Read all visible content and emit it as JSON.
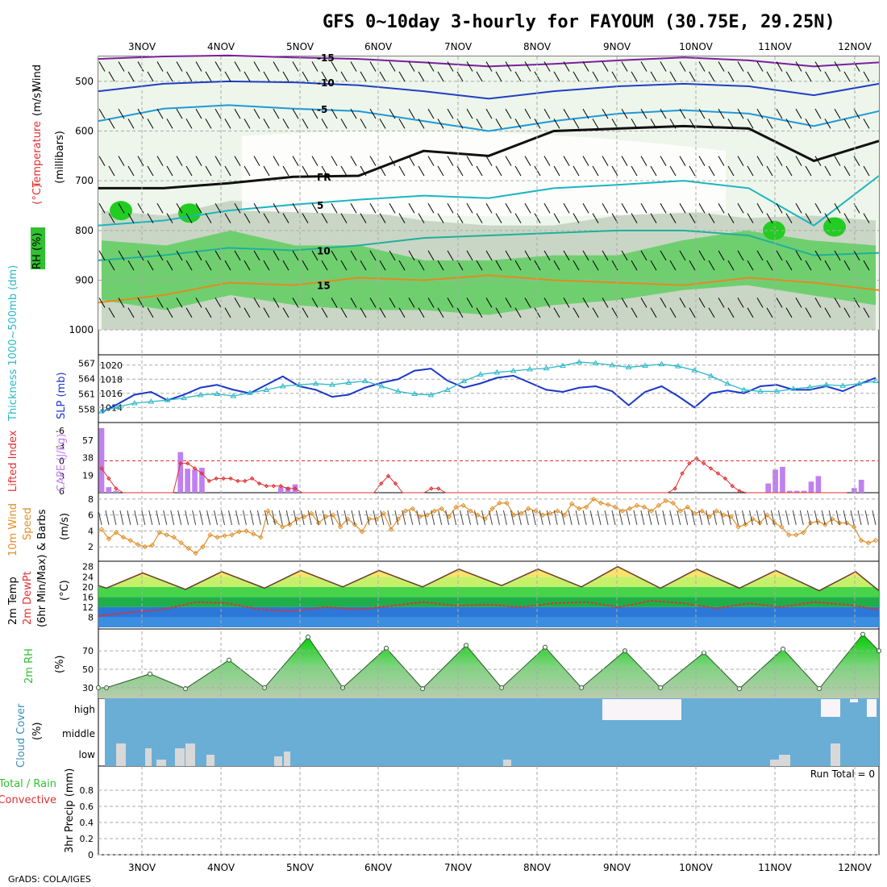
{
  "title": "GFS 0~10day 3-hourly for FAYOUM (30.75E, 29.25N)",
  "footer": "GrADS: COLA/IGES",
  "chart_data": [
    {
      "type": "contour",
      "id": "upper_air",
      "x_dates": [
        "3NOV",
        "4NOV",
        "5NOV",
        "6NOV",
        "7NOV",
        "8NOV",
        "9NOV",
        "10NOV",
        "11NOV",
        "12NOV"
      ],
      "ylabel_parts": [
        "Wind",
        "(m/s)",
        "Temperature",
        "(°C)",
        "RH",
        "(%)"
      ],
      "ylabel_units": "(millibars)",
      "y_ticks": [
        "500",
        "600",
        "700",
        "800",
        "900",
        "1000"
      ],
      "ylim": [
        450,
        1050
      ],
      "contour_labels": {
        "minus15": "-15",
        "minus10": "-10",
        "minus5": "-5",
        "plus5": "5",
        "plus10": "10",
        "plus15": "15",
        "freezing": "FR"
      },
      "rh_legend": "RH (%)",
      "isotherms": [
        {
          "label": "-15",
          "color": "#7b1fa2",
          "p": [
            455,
            450,
            448,
            452,
            455,
            462,
            470,
            465,
            458,
            452,
            458,
            470,
            462
          ]
        },
        {
          "label": "-10",
          "color": "#1f3fc4",
          "p": [
            520,
            505,
            500,
            502,
            508,
            520,
            535,
            520,
            510,
            505,
            510,
            528,
            505
          ]
        },
        {
          "label": "-5",
          "color": "#1e9ad8",
          "p": [
            580,
            555,
            548,
            555,
            560,
            580,
            600,
            580,
            565,
            558,
            565,
            590,
            560
          ]
        },
        {
          "label": "FR",
          "color": "#111111",
          "p": [
            715,
            715,
            705,
            692,
            690,
            640,
            650,
            600,
            595,
            590,
            595,
            660,
            620
          ]
        },
        {
          "label": "5",
          "color": "#1ab5c0",
          "p": [
            790,
            780,
            760,
            748,
            738,
            730,
            735,
            715,
            708,
            700,
            715,
            790,
            690
          ]
        },
        {
          "label": "10",
          "color": "#20b09a",
          "p": [
            860,
            850,
            835,
            840,
            830,
            815,
            810,
            805,
            800,
            800,
            810,
            850,
            845
          ]
        },
        {
          "label": "15",
          "color": "#e08c1e",
          "p": [
            945,
            930,
            905,
            910,
            895,
            900,
            890,
            900,
            905,
            910,
            895,
            905,
            920
          ]
        }
      ]
    },
    {
      "type": "line",
      "id": "slp_thickness",
      "ylabel": "SLP (mb)",
      "ylabel2": "Thickness 1000~500mb (dm)",
      "y_ticks": [
        "1014",
        "1016",
        "1018",
        "1020"
      ],
      "y2_ticks": [
        "558",
        "561",
        "564",
        "567"
      ],
      "series": [
        {
          "name": "SLP (mb)",
          "color": "#1a37c8",
          "values": [
            1013.3,
            1014.5,
            1015.8,
            1016.2,
            1015.0,
            1015.8,
            1016.8,
            1017.2,
            1016.5,
            1016.0,
            1017.2,
            1018.4,
            1017.0,
            1016.5,
            1015.5,
            1015.8,
            1016.8,
            1017.5,
            1018.0,
            1019.2,
            1019.5,
            1017.8,
            1016.8,
            1017.4,
            1018.2,
            1018.5,
            1017.5,
            1016.5,
            1016.2,
            1016.8,
            1017.0,
            1016.3,
            1014.3,
            1016.2,
            1017.0,
            1015.6,
            1014.0,
            1016.0,
            1016.4,
            1016.0,
            1017.0,
            1017.2,
            1016.5,
            1016.5,
            1017.0,
            1016.3,
            1017.3,
            1018.2
          ]
        },
        {
          "name": "Thickness (dm)",
          "color": "#2cb8c8",
          "values": [
            557.6,
            558.5,
            559.2,
            559.5,
            559.8,
            560.2,
            560.8,
            561.0,
            560.6,
            561.2,
            561.8,
            562.5,
            562.8,
            563.0,
            562.8,
            563.2,
            563.5,
            562.5,
            561.5,
            561.0,
            560.8,
            561.8,
            563.5,
            564.8,
            565.2,
            565.5,
            565.8,
            566.0,
            566.5,
            567.2,
            567.0,
            566.6,
            566.2,
            566.5,
            566.8,
            566.4,
            565.6,
            564.5,
            563.0,
            561.8,
            561.5,
            561.5,
            562.0,
            562.3,
            562.8,
            562.6,
            563.0,
            563.5
          ]
        }
      ]
    },
    {
      "type": "bar+line",
      "id": "cape_li",
      "ylabel": "Lifted Index",
      "ylabel2": "CAPE (J/kg)",
      "y_ticks_li": [
        "-6",
        "-3",
        "0",
        "3",
        "6"
      ],
      "y_ticks_cape": [
        "19",
        "38",
        "57"
      ],
      "cape_values": [
        70,
        6,
        2,
        0,
        0,
        0,
        0,
        0,
        0,
        0,
        0,
        44,
        26,
        25,
        27,
        0,
        0,
        0,
        0,
        0,
        0,
        0,
        0,
        0,
        0,
        6,
        6,
        9,
        0,
        0,
        0,
        0,
        0,
        0,
        0,
        0,
        0,
        0,
        0,
        0,
        0,
        0,
        0,
        0,
        0,
        0,
        0,
        0,
        0,
        0,
        0,
        0,
        0,
        0,
        0,
        0,
        0,
        0,
        0,
        0,
        0,
        0,
        0,
        0,
        0,
        0,
        0,
        0,
        0,
        0,
        0,
        0,
        0,
        0,
        0,
        0,
        0,
        0,
        0,
        0,
        0,
        0,
        0,
        0,
        0,
        0,
        0,
        0,
        0,
        0,
        0,
        0,
        0,
        10,
        25,
        28,
        2,
        2,
        2,
        12,
        18,
        0,
        0,
        0,
        0,
        5,
        14,
        0,
        0
      ],
      "li_values": [
        1.5,
        3.5,
        5.5,
        6.5,
        6.5,
        6.5,
        6.5,
        6.5,
        6.5,
        6.5,
        6.5,
        0.5,
        0.5,
        1.5,
        2.5,
        4.0,
        3.5,
        3.5,
        3.5,
        4.0,
        4.0,
        3.5,
        4.5,
        5.0,
        5.0,
        5.0,
        5.5,
        5.5,
        6.5,
        6.5,
        6.5,
        6.5,
        6.5,
        6.5,
        6.5,
        6.5,
        6.5,
        6.5,
        6.5,
        4.5,
        3.0,
        4.5,
        6.5,
        6.5,
        6.5,
        6.5,
        5.5,
        5.5,
        6.5,
        6.5,
        6.5,
        6.5,
        6.5,
        6.5,
        6.5,
        6.5,
        6.5,
        6.5,
        6.5,
        6.5,
        6.5,
        6.5,
        6.5,
        6.5,
        6.5,
        6.5,
        6.5,
        6.5,
        6.5,
        6.5,
        6.5,
        6.5,
        6.5,
        6.5,
        6.5,
        6.5,
        6.5,
        6.5,
        6.5,
        6.5,
        5.5,
        2.5,
        0.5,
        -0.5,
        0.5,
        1.5,
        2.5,
        3.5,
        5.0,
        6.0,
        6.5,
        6.5,
        6.5,
        6.5,
        6.5,
        6.5,
        6.5,
        6.5,
        6.5,
        6.5,
        6.5,
        6.5,
        6.5,
        6.5,
        6.5
      ]
    },
    {
      "type": "line",
      "id": "wind10m",
      "ylabel": "10m Wind",
      "ylabel2": "Speed",
      "ylabel3": "& Barbs",
      "ylabel_units": "(m/s)",
      "y_ticks": [
        "2",
        "4",
        "6",
        "8"
      ],
      "series": [
        {
          "name": "10m Wind Speed",
          "color": "#e0902a",
          "values": [
            4.2,
            3.0,
            3.8,
            3.2,
            2.8,
            2.3,
            2.0,
            2.2,
            3.8,
            3.5,
            3.2,
            2.5,
            1.8,
            1.2,
            2.0,
            3.5,
            3.2,
            3.4,
            3.5,
            3.9,
            4.0,
            3.6,
            3.2,
            6.5,
            5.2,
            4.5,
            4.8,
            5.5,
            5.8,
            6.2,
            5.0,
            5.8,
            6.0,
            4.5,
            5.5,
            4.8,
            3.9,
            5.5,
            5.5,
            6.2,
            4.2,
            5.5,
            6.5,
            6.8,
            5.8,
            6.0,
            6.5,
            6.8,
            5.8,
            7.0,
            7.2,
            6.5,
            6.0,
            5.5,
            6.8,
            7.5,
            7.5,
            6.0,
            6.2,
            6.8,
            6.5,
            6.0,
            6.2,
            6.5,
            6.0,
            7.4,
            6.8,
            7.0,
            8.0,
            7.5,
            7.3,
            7.0,
            6.5,
            6.8,
            7.2,
            7.0,
            6.5,
            7.2,
            7.8,
            7.5,
            6.5,
            7.0,
            6.2,
            6.5,
            5.8,
            6.5,
            6.0,
            5.8,
            4.5,
            4.8,
            5.5,
            5.0,
            6.0,
            5.0,
            4.5,
            3.5,
            3.5,
            3.8,
            5.0,
            5.2,
            4.8,
            5.5,
            5.0,
            5.0,
            4.5,
            2.8,
            2.5,
            2.8
          ]
        }
      ]
    },
    {
      "type": "area",
      "id": "temp2m",
      "ylabel": "2m Temp",
      "ylabel2": "2m DewPt",
      "ylabel3": "(6hr Min/Max)",
      "ylabel_units": "(°C)",
      "y_ticks": [
        "8",
        "12",
        "16",
        "20",
        "24",
        "28"
      ],
      "temp_max_peaks": [
        25.5,
        26.0,
        26.5,
        26.5,
        27.0,
        27.0,
        28.0,
        27.0,
        26.5,
        26.0
      ],
      "temp_min_troughs": [
        19.5,
        19.0,
        19.5,
        20.0,
        20.0,
        20.5,
        20.0,
        19.5,
        19.5,
        18.5
      ],
      "dewpoint_values": [
        8.5,
        10.0,
        11.0,
        14.0,
        13.5,
        11.0,
        10.5,
        12.0,
        11.0,
        12.5,
        14.0,
        12.5,
        13.0,
        12.0,
        13.5,
        14.0,
        12.0,
        14.5,
        13.5,
        11.5,
        13.5,
        12.0,
        14.0,
        13.0,
        11.0
      ]
    },
    {
      "type": "area",
      "id": "rh2m",
      "ylabel": "2m RH",
      "ylabel_units": "(%)",
      "y_ticks": [
        "30",
        "50",
        "70"
      ],
      "rh_peaks": [
        45,
        60,
        85,
        73,
        76,
        74,
        70,
        68,
        72,
        88
      ],
      "rh_troughs": [
        30,
        29,
        30,
        30,
        29,
        30,
        30,
        30,
        29,
        29
      ]
    },
    {
      "type": "bar",
      "id": "cloud",
      "ylabel": "Cloud Cover",
      "ylabel_units": "(%)",
      "y_ticks": [
        "low",
        "middle",
        "high"
      ],
      "high_clear_from": "9NOV",
      "high_clear_to": "10NOV"
    },
    {
      "type": "bar",
      "id": "precip",
      "ylabel": "3hr Precip (mm)",
      "ylabel2": "Total / Rain",
      "ylabel3": "Convective",
      "y_ticks": [
        "0",
        "0.2",
        "0.4",
        "0.6",
        "0.8"
      ],
      "run_total": "Run Total = 0",
      "values": []
    }
  ],
  "colors": {
    "slp": "#1a37c8",
    "thickness": "#2cb8c8",
    "cape": "#c080f0",
    "li": "#e03030",
    "wind": "#e0902a",
    "dewpt": "#e03030",
    "rh_green": "#30c030",
    "cloud_bg": "#6aaed6",
    "cloud_clear": "#f8f4f8"
  }
}
